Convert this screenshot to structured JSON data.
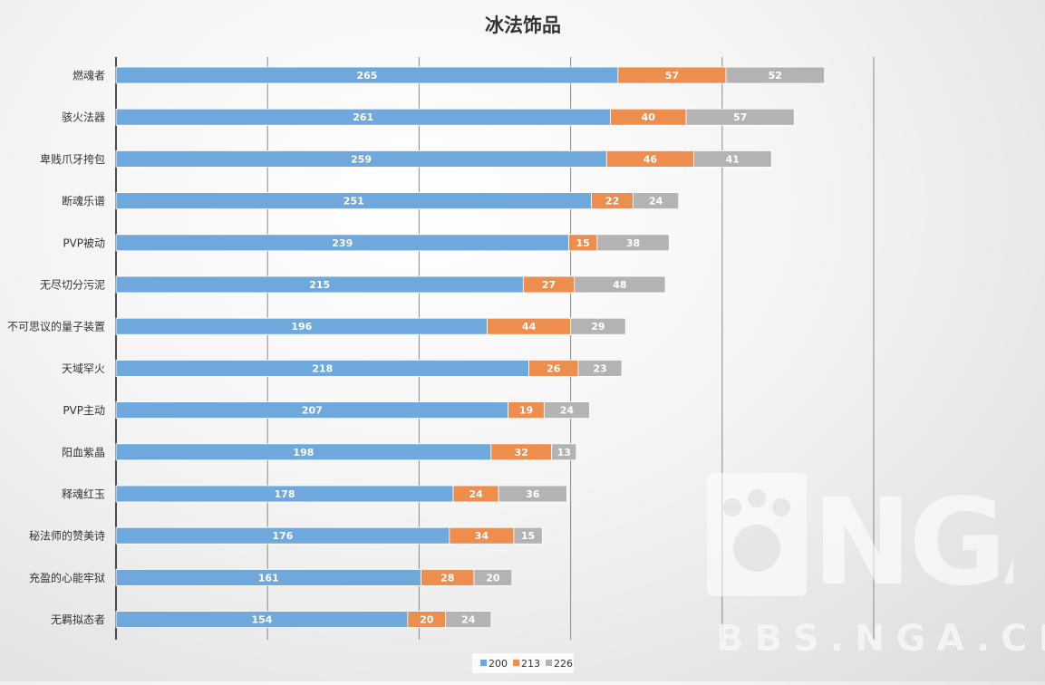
{
  "chart_data": {
    "type": "bar",
    "orientation": "horizontal",
    "stacked": true,
    "title": "冰法饰品",
    "categories": [
      "燃魂者",
      "骇火法器",
      "卑贱爪牙挎包",
      "断魂乐谱",
      "PVP被动",
      "无尽切分污泥",
      "不可思议的量子装置",
      "天域罕火",
      "PVP主动",
      "阳血紫晶",
      "释魂红玉",
      "秘法师的赞美诗",
      "充盈的心能牢狱",
      "无羁拟态者"
    ],
    "series": [
      {
        "name": "200",
        "color": "#6fa8dc",
        "values": [
          265,
          261,
          259,
          251,
          239,
          215,
          196,
          218,
          207,
          198,
          178,
          176,
          161,
          154
        ]
      },
      {
        "name": "213",
        "color": "#ed8d4e",
        "values": [
          57,
          40,
          46,
          22,
          15,
          27,
          44,
          26,
          19,
          32,
          24,
          34,
          28,
          20
        ]
      },
      {
        "name": "226",
        "color": "#b3b3b3",
        "values": [
          52,
          57,
          41,
          24,
          38,
          48,
          29,
          23,
          24,
          13,
          36,
          15,
          20,
          24
        ]
      }
    ],
    "xlim": [
      0,
      400
    ],
    "grid": true,
    "legend": "bottom-center"
  },
  "watermark": {
    "logo": "NGA",
    "site": "BBS.NGA.CN"
  }
}
